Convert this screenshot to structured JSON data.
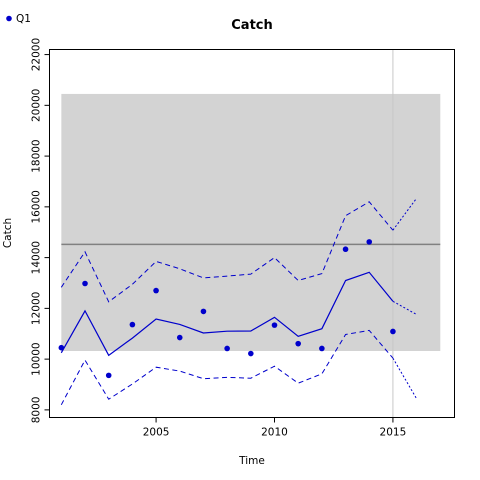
{
  "chart_data": {
    "type": "line",
    "title": "Catch",
    "xlabel": "Time",
    "ylabel": "Catch",
    "xlim": [
      2000.5,
      2017.6
    ],
    "ylim": [
      7700,
      22200
    ],
    "x_ticks": [
      2005,
      2010,
      2015
    ],
    "y_ticks": [
      8000,
      10000,
      12000,
      14000,
      16000,
      18000,
      20000,
      22000
    ],
    "grid": false,
    "legend": {
      "position": "top-left",
      "entries": [
        "Q1"
      ]
    },
    "colors": {
      "series": "#0000cc",
      "band": "#d3d3d3",
      "reference": "#808080",
      "vline": "#c8c8c8"
    },
    "band": {
      "x": [
        2001,
        2017
      ],
      "y": [
        10320,
        20450
      ]
    },
    "reference_line": {
      "y": 14520
    },
    "vertical_line": {
      "x": 2015
    },
    "points": {
      "name": "Q1",
      "x": [
        2001,
        2002,
        2003,
        2004,
        2005,
        2006,
        2007,
        2008,
        2009,
        2010,
        2011,
        2012,
        2013,
        2014,
        2015
      ],
      "y": [
        10450,
        12980,
        9360,
        11360,
        12700,
        10850,
        11880,
        10420,
        10220,
        11340,
        10610,
        10420,
        14330,
        14620,
        11090
      ]
    },
    "fit": {
      "x": [
        2001,
        2002,
        2003,
        2004,
        2005,
        2006,
        2007,
        2008,
        2009,
        2010,
        2011,
        2012,
        2013,
        2014,
        2015
      ],
      "y": [
        10250,
        11900,
        10150,
        10830,
        11580,
        11370,
        11030,
        11100,
        11110,
        11650,
        10900,
        11200,
        13100,
        13420,
        12280
      ]
    },
    "upper": {
      "x": [
        2001,
        2002,
        2003,
        2004,
        2005,
        2006,
        2007,
        2008,
        2009,
        2010,
        2011,
        2012,
        2013,
        2014,
        2015
      ],
      "y": [
        12830,
        14230,
        12260,
        12950,
        13850,
        13560,
        13200,
        13270,
        13350,
        14000,
        13100,
        13370,
        15650,
        16200,
        15080
      ]
    },
    "lower": {
      "x": [
        2001,
        2002,
        2003,
        2004,
        2005,
        2006,
        2007,
        2008,
        2009,
        2010,
        2011,
        2012,
        2013,
        2014,
        2015
      ],
      "y": [
        8200,
        9960,
        8420,
        9020,
        9680,
        9530,
        9230,
        9280,
        9250,
        9720,
        9050,
        9420,
        10970,
        11130,
        10040
      ]
    },
    "forecast": {
      "x": [
        2015,
        2016
      ],
      "fit": [
        12280,
        11760
      ],
      "upper": [
        15080,
        16340
      ],
      "lower": [
        10040,
        8440
      ]
    }
  }
}
